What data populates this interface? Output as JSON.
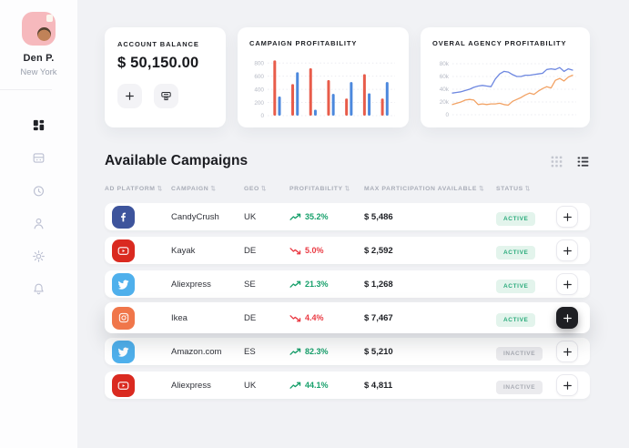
{
  "sidebar": {
    "user": {
      "name": "Den P.",
      "location": "New York"
    },
    "nav": [
      {
        "icon": "dashboard-icon",
        "active": true
      },
      {
        "icon": "storefront-icon",
        "active": false
      },
      {
        "icon": "history-icon",
        "active": false
      },
      {
        "icon": "profile-icon",
        "active": false
      },
      {
        "icon": "settings-icon",
        "active": false
      },
      {
        "icon": "notifications-icon",
        "active": false
      }
    ]
  },
  "balance_card": {
    "label": "ACCOUNT BALANCE",
    "amount": "$ 50,150.00",
    "add_icon": "plus-icon",
    "withdraw_icon": "cash-terminal-icon"
  },
  "section": {
    "title": "Available Campaigns",
    "view_icons": [
      "grid-view-icon",
      "list-view-icon"
    ],
    "active_view": "list"
  },
  "table": {
    "headers": [
      "AD PLATFORM",
      "CAMPAIGN",
      "GEO",
      "PROFITABILITY",
      "MAX PARTICIPATION AVAILABLE",
      "STATUS"
    ],
    "sort_glyph": "⇅",
    "rows": [
      {
        "platform": "facebook",
        "campaign": "CandyCrush",
        "geo": "UK",
        "profitability": "35.2%",
        "trend": "up",
        "max_participation": "$ 5,486",
        "status": "ACTIVE",
        "highlighted": false
      },
      {
        "platform": "youtube",
        "campaign": "Kayak",
        "geo": "DE",
        "profitability": "5.0%",
        "trend": "down",
        "max_participation": "$ 2,592",
        "status": "ACTIVE",
        "highlighted": false
      },
      {
        "platform": "twitter",
        "campaign": "Aliexpress",
        "geo": "SE",
        "profitability": "21.3%",
        "trend": "up",
        "max_participation": "$ 1,268",
        "status": "ACTIVE",
        "highlighted": false
      },
      {
        "platform": "instagram",
        "campaign": "Ikea",
        "geo": "DE",
        "profitability": "4.4%",
        "trend": "down",
        "max_participation": "$ 7,467",
        "status": "ACTIVE",
        "highlighted": true
      },
      {
        "platform": "twitter",
        "campaign": "Amazon.com",
        "geo": "ES",
        "profitability": "82.3%",
        "trend": "up",
        "max_participation": "$ 5,210",
        "status": "INACTIVE",
        "highlighted": false
      },
      {
        "platform": "youtube",
        "campaign": "Aliexpress",
        "geo": "UK",
        "profitability": "44.1%",
        "trend": "up",
        "max_participation": "$ 4,811",
        "status": "INACTIVE",
        "highlighted": false
      }
    ]
  },
  "chart_data": [
    {
      "type": "bar",
      "title": "CAMPAIGN PROFITABILITY",
      "ylim": [
        0,
        900
      ],
      "grid": "dotted-horizontal",
      "legend": false,
      "yticks": [
        {
          "value": 800,
          "label": "800"
        },
        {
          "value": 600,
          "label": "600"
        },
        {
          "value": 400,
          "label": "400"
        },
        {
          "value": 200,
          "label": "200"
        },
        {
          "value": 0,
          "label": "0"
        }
      ],
      "series": [
        {
          "name": "series-red",
          "color": "#e85c4a",
          "values": [
            840,
            480,
            720,
            540,
            260,
            630,
            260
          ]
        },
        {
          "name": "series-blue",
          "color": "#4c88dd",
          "values": [
            290,
            660,
            90,
            330,
            510,
            340,
            510
          ]
        }
      ]
    },
    {
      "type": "line",
      "title": "OVERAL AGENCY PROFITABILITY",
      "unit": "thousands",
      "ylim": [
        0,
        90
      ],
      "grid": "dotted-horizontal",
      "legend": false,
      "yticks": [
        {
          "value": 80,
          "label": "80k"
        },
        {
          "value": 60,
          "label": "60k"
        },
        {
          "value": 40,
          "label": "40k"
        },
        {
          "value": 20,
          "label": "20k"
        },
        {
          "value": 0,
          "label": "0"
        }
      ],
      "series": [
        {
          "name": "series-blue",
          "color": "#6d87e0",
          "values": [
            34,
            35,
            36,
            38,
            40,
            43,
            45,
            46,
            45,
            44,
            56,
            64,
            68,
            67,
            63,
            60,
            60,
            62,
            62,
            63,
            64,
            65,
            71,
            72,
            71,
            74,
            68,
            72,
            70
          ]
        },
        {
          "name": "series-orange",
          "color": "#f2a264",
          "values": [
            16,
            18,
            20,
            23,
            24,
            23,
            16,
            17,
            16,
            17,
            17,
            18,
            16,
            15,
            21,
            24,
            27,
            31,
            34,
            32,
            37,
            41,
            44,
            42,
            54,
            57,
            53,
            59,
            62
          ]
        }
      ]
    }
  ],
  "colors": {
    "accent_green": "#17a06b",
    "accent_red": "#ea3a43",
    "badge_active_bg": "#e3f4ec",
    "badge_active_text": "#2bab7c",
    "badge_inactive_bg": "#ebebee",
    "badge_inactive_text": "#a9acb4",
    "platforms": {
      "facebook": "#3d549c",
      "youtube": "#da2a20",
      "twitter": "#4fb0ec",
      "instagram": "#f0764a"
    }
  }
}
